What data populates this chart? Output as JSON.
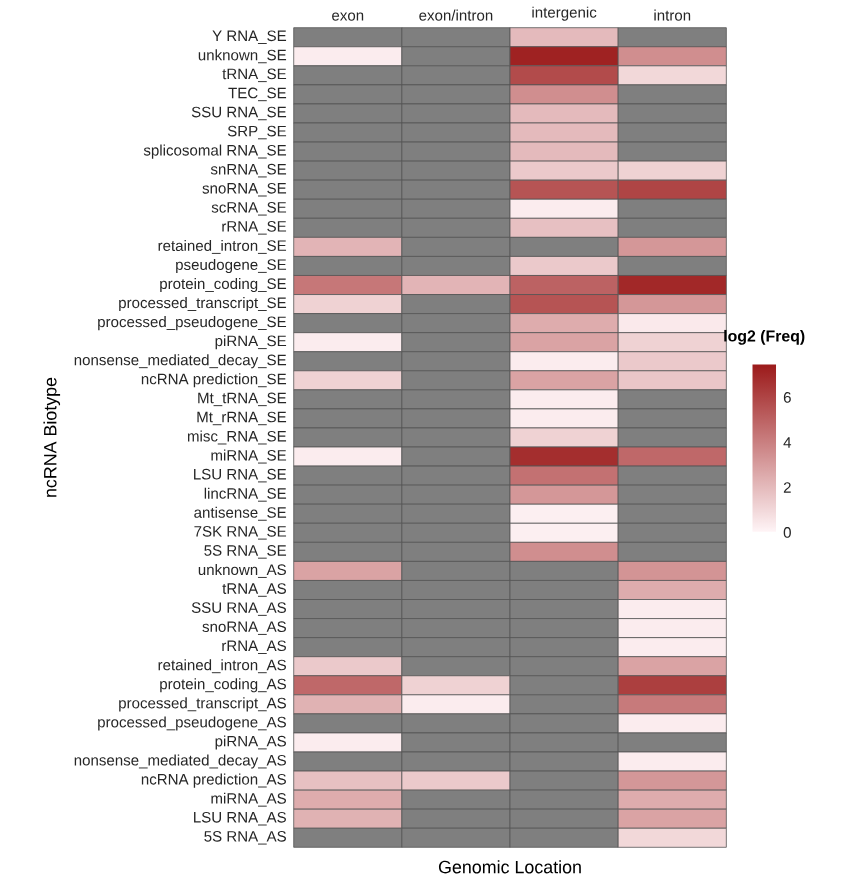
{
  "chart_data": {
    "type": "heatmap",
    "xlabel": "Genomic Location",
    "ylabel": "ncRNA Biotype",
    "clabel": "log2 (Freq)",
    "categories": [
      "exon",
      "exon/intron",
      "intergenic",
      "intron"
    ],
    "y_categories": [
      "Y RNA_SE",
      "unknown_SE",
      "tRNA_SE",
      "TEC_SE",
      "SSU RNA_SE",
      "SRP_SE",
      "splicosomal RNA_SE",
      "snRNA_SE",
      "snoRNA_SE",
      "scRNA_SE",
      "rRNA_SE",
      "retained_intron_SE",
      "pseudogene_SE",
      "protein_coding_SE",
      "processed_transcript_SE",
      "processed_pseudogene_SE",
      "piRNA_SE",
      "nonsense_mediated_decay_SE",
      "ncRNA prediction_SE",
      "Mt_tRNA_SE",
      "Mt_rRNA_SE",
      "misc_RNA_SE",
      "miRNA_SE",
      "LSU RNA_SE",
      "lincRNA_SE",
      "antisense_SE",
      "7SK RNA_SE",
      "5S RNA_SE",
      "unknown_AS",
      "tRNA_AS",
      "SSU RNA_AS",
      "snoRNA_AS",
      "rRNA_AS",
      "retained_intron_AS",
      "protein_coding_AS",
      "processed_transcript_AS",
      "processed_pseudogene_AS",
      "piRNA_AS",
      "nonsense_mediated_decay_AS",
      "ncRNA prediction_AS",
      "miRNA_AS",
      "LSU RNA_AS",
      "5S RNA_AS"
    ],
    "cells": [
      [
        null,
        null,
        2,
        null
      ],
      [
        0.3,
        null,
        7.2,
        3.5
      ],
      [
        null,
        null,
        5.8,
        1
      ],
      [
        null,
        null,
        3.5,
        null
      ],
      [
        null,
        null,
        2,
        null
      ],
      [
        null,
        null,
        2,
        null
      ],
      [
        null,
        null,
        2,
        null
      ],
      [
        null,
        null,
        1.5,
        1.2
      ],
      [
        null,
        null,
        5.5,
        6
      ],
      [
        null,
        null,
        0.3,
        null
      ],
      [
        null,
        null,
        1.8,
        null
      ],
      [
        2.2,
        null,
        null,
        3.2
      ],
      [
        null,
        null,
        1.5,
        null
      ],
      [
        4.3,
        2.2,
        5,
        7
      ],
      [
        1.2,
        null,
        5.5,
        3.2
      ],
      [
        null,
        null,
        2.5,
        0.4
      ],
      [
        0.3,
        null,
        2.8,
        1.2
      ],
      [
        null,
        null,
        0.3,
        1.5
      ],
      [
        1.2,
        null,
        2.8,
        1.6
      ],
      [
        null,
        null,
        0.3,
        null
      ],
      [
        null,
        null,
        0.3,
        null
      ],
      [
        null,
        null,
        1.2,
        null
      ],
      [
        0.3,
        null,
        6.8,
        4.8
      ],
      [
        null,
        null,
        4.5,
        null
      ],
      [
        null,
        null,
        3.2,
        null
      ],
      [
        null,
        null,
        0.2,
        null
      ],
      [
        null,
        null,
        0.2,
        null
      ],
      [
        null,
        null,
        3.5,
        null
      ],
      [
        2.8,
        null,
        null,
        3.3
      ],
      [
        null,
        null,
        null,
        2.5
      ],
      [
        null,
        null,
        null,
        0.3
      ],
      [
        null,
        null,
        null,
        0.3
      ],
      [
        null,
        null,
        null,
        0.3
      ],
      [
        1.5,
        null,
        null,
        2.8
      ],
      [
        4.8,
        1.2,
        null,
        6.2
      ],
      [
        2.3,
        0.3,
        null,
        4.2
      ],
      [
        null,
        null,
        null,
        0.3
      ],
      [
        0.3,
        null,
        null,
        null
      ],
      [
        null,
        null,
        null,
        0.3
      ],
      [
        1.8,
        1.5,
        null,
        3.2
      ],
      [
        2.5,
        null,
        null,
        2.5
      ],
      [
        2.3,
        null,
        null,
        2.8
      ],
      [
        null,
        null,
        null,
        1.0
      ]
    ],
    "clim": [
      0,
      7.5
    ],
    "cticks": [
      0,
      2,
      4,
      6
    ]
  }
}
